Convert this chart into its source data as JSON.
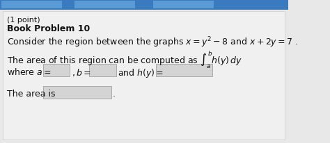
{
  "bg_color": "#e8e8e8",
  "top_bar_color": "#5b9bd5",
  "header_line1": "(1 point)",
  "header_line2": "Book Problem 10",
  "line1": "Consider the region between the graphs $x = y^2 - 8$ and $x + 2y = 7$ .",
  "line2": "The area of this region can be computed as $\\int_a^b h(y)\\, dy$",
  "line3_prefix": "where $a =$ ",
  "line3_b": "$, b =$ ",
  "line3_hy": "and $h(y) =$ ",
  "line4_prefix": "The area is",
  "box_color": "#d0d0d0",
  "text_color": "#111111",
  "font_size_main": 9,
  "font_size_header1": 8,
  "font_size_header2": 9
}
